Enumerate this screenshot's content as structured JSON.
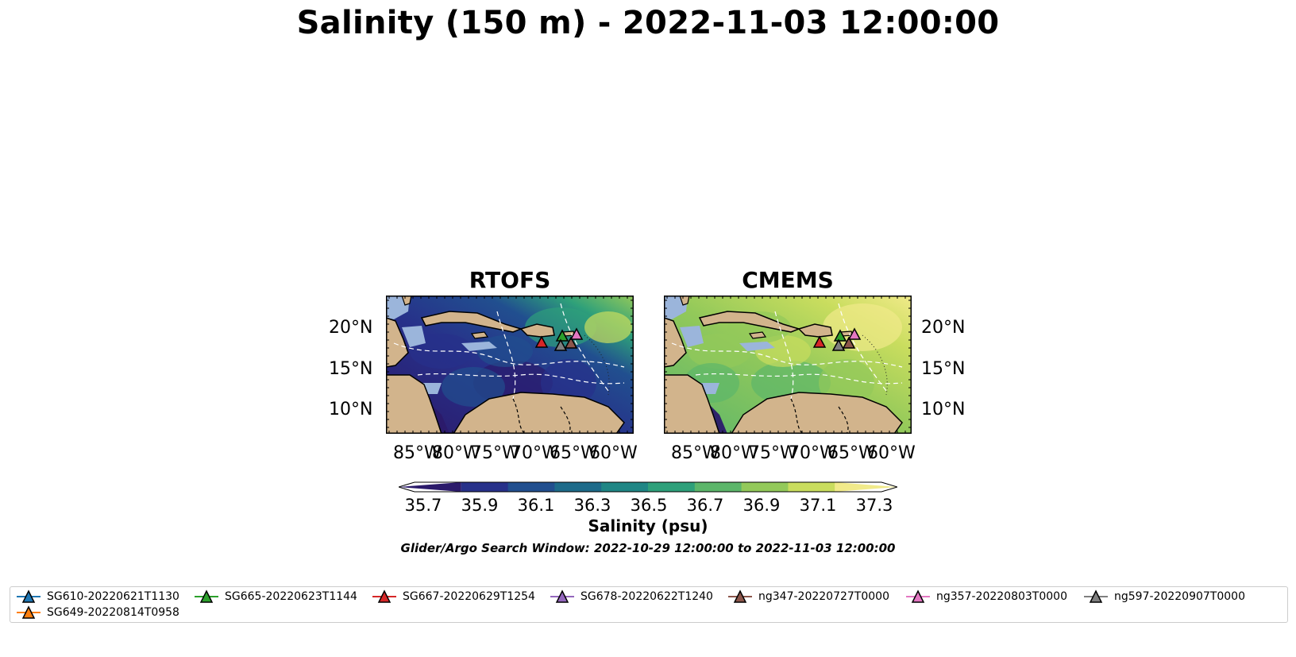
{
  "figure": {
    "title": "Salinity (150 m) - 2022-11-03 12:00:00",
    "panels": [
      {
        "title": "RTOFS",
        "colorscheme": "low"
      },
      {
        "title": "CMEMS",
        "colorscheme": "high"
      }
    ],
    "lat_labels": [
      "20°N",
      "15°N",
      "10°N"
    ],
    "lon_labels": [
      "85°W",
      "80°W",
      "75°W",
      "70°W",
      "65°W",
      "60°W"
    ],
    "colorbar": {
      "ticks": [
        "35.7",
        "35.9",
        "36.1",
        "36.3",
        "36.5",
        "36.7",
        "36.9",
        "37.1",
        "37.3"
      ],
      "label": "Salinity (psu)",
      "colors": [
        "#2b1a6b",
        "#27318a",
        "#214f8f",
        "#1d6b8a",
        "#1f8685",
        "#2ea07a",
        "#5cb66a",
        "#93c95a",
        "#c9dd5e",
        "#f1ea8a"
      ]
    },
    "search_window": "Glider/Argo Search Window: 2022-10-29 12:00:00 to 2022-11-03 12:00:00"
  },
  "legend": {
    "items": [
      {
        "label": "SG610-20220621T1130",
        "color": "#1f77b4"
      },
      {
        "label": "SG649-20220814T0958",
        "color": "#ff7f0e"
      },
      {
        "label": "SG665-20220623T1144",
        "color": "#2ca02c"
      },
      {
        "label": "SG667-20220629T1254",
        "color": "#d62728"
      },
      {
        "label": "SG678-20220622T1240",
        "color": "#9467bd"
      },
      {
        "label": "ng347-20220727T0000",
        "color": "#8c564b"
      },
      {
        "label": "ng357-20220803T0000",
        "color": "#e377c2"
      },
      {
        "label": "ng597-20220907T0000",
        "color": "#7f7f7f"
      }
    ]
  }
}
